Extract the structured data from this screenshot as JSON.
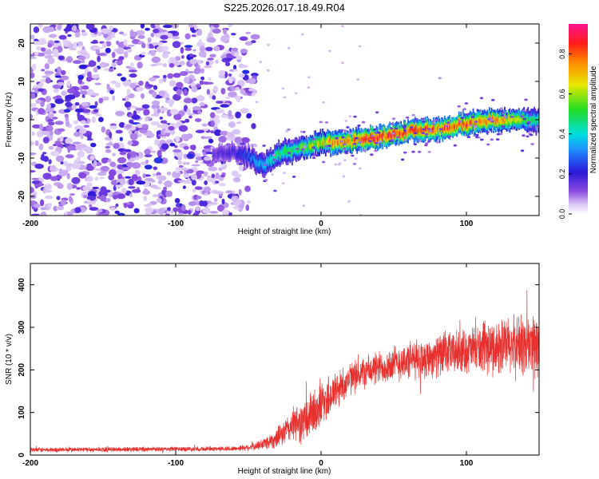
{
  "chart_data": [
    {
      "type": "heatmap",
      "title": "S225.2026.017.18.49.R04",
      "xlabel": "Height of straight line (km)",
      "ylabel": "Frequency (Hz)",
      "xlim": [
        -200,
        150
      ],
      "ylim": [
        -25,
        25
      ],
      "xticks": [
        -200,
        -100,
        0,
        100
      ],
      "yticks": [
        -20,
        -10,
        0,
        10,
        20
      ],
      "colorbar": {
        "label": "Normalized spectral amplitude",
        "range": [
          0.0,
          0.95
        ],
        "ticks": [
          0.0,
          0.2,
          0.4,
          0.6,
          0.8
        ],
        "colormap": "rainbow (purple → blue → cyan → green → yellow → red → magenta)"
      },
      "noise_region": {
        "x": [
          -200,
          -55
        ],
        "amplitude": "low (0.05–0.2)"
      },
      "ridge": {
        "x": [
          -75,
          -60,
          -50,
          -45,
          -40,
          -35,
          -30,
          -20,
          -10,
          0,
          10,
          20,
          40,
          60,
          80,
          100,
          120,
          140,
          150
        ],
        "y": [
          -9,
          -8.5,
          -9.5,
          -11,
          -12,
          -10.5,
          -9,
          -8,
          -7,
          -6,
          -6,
          -5.5,
          -4.5,
          -3,
          -2.5,
          -1,
          0,
          0,
          -0.5
        ],
        "amplitude": [
          0.15,
          0.2,
          0.3,
          0.35,
          0.4,
          0.45,
          0.5,
          0.55,
          0.6,
          0.7,
          0.8,
          0.85,
          0.9,
          0.9,
          0.85,
          0.85,
          0.8,
          0.6,
          0.5
        ]
      }
    },
    {
      "type": "line",
      "xlabel": "Height of straight line (km)",
      "ylabel": "SNR (10 * v/v)",
      "xlim": [
        -200,
        150
      ],
      "ylim": [
        0,
        450
      ],
      "xticks": [
        -200,
        -100,
        0,
        100
      ],
      "yticks": [
        0,
        100,
        200,
        300,
        400
      ],
      "color": "#e8312f",
      "envelope": {
        "x": [
          -200,
          -100,
          -60,
          -45,
          -30,
          -20,
          -10,
          0,
          10,
          20,
          30,
          50,
          75,
          100,
          125,
          150
        ],
        "mean": [
          12,
          14,
          15,
          20,
          40,
          70,
          80,
          120,
          150,
          180,
          195,
          215,
          230,
          245,
          255,
          260
        ],
        "spread": [
          6,
          6,
          6,
          10,
          25,
          40,
          60,
          60,
          50,
          40,
          40,
          45,
          50,
          55,
          70,
          90
        ]
      }
    }
  ]
}
